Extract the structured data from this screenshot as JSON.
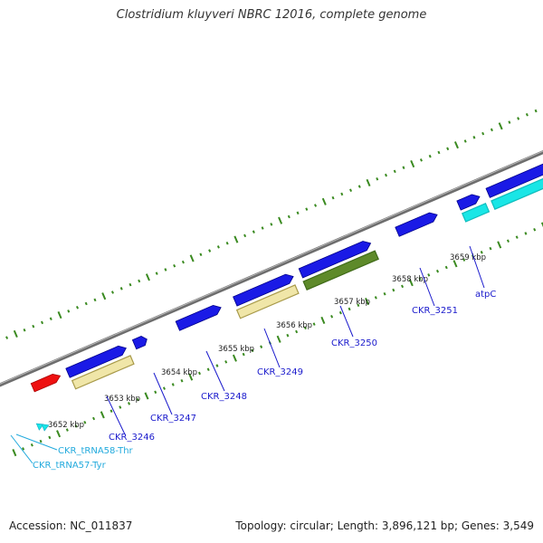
{
  "title": "Clostridium kluyveri NBRC 12016, complete genome",
  "footer": {
    "accession": "Accession: NC_011837",
    "summary": "Topology: circular; Length: 3,896,121 bp; Genes: 3,549"
  },
  "colors": {
    "backbone": "#777777",
    "tick": "#3a8a20",
    "cds": "#1a1ae6",
    "cds_light": "#2b2bff",
    "pseudo": "#f0e6a8",
    "pseudo_edge": "#a89a4a",
    "other": "#5e8a2a",
    "other_edge": "#3f6a18",
    "cyan": "#19e6e6",
    "red": "#ee1111",
    "gene_label": "#1a1acc",
    "trna_label": "#22aadd"
  },
  "kbp_labels": [
    "3652 kbp",
    "3653 kbp",
    "3654 kbp",
    "3655 kbp",
    "3656 kbp",
    "3657 kbp",
    "3658 kbp",
    "3659 kbp"
  ],
  "gene_labels": [
    "CKR_3246",
    "CKR_3247",
    "CKR_3248",
    "CKR_3249",
    "CKR_3250",
    "CKR_3251",
    "atpC"
  ],
  "trna_labels": [
    "CKR_tRNA58-Thr",
    "CKR_tRNA57-Tyr"
  ]
}
